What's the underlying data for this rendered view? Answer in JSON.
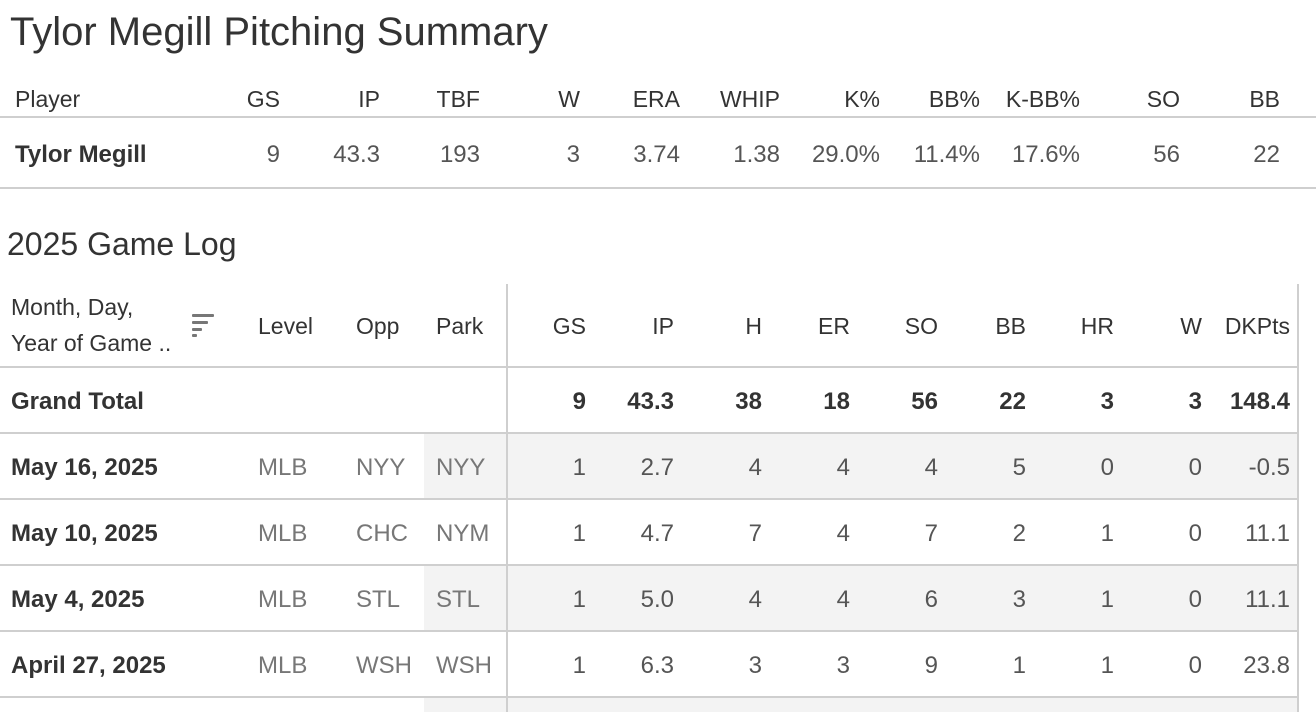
{
  "title": "Tylor Megill Pitching Summary",
  "summary": {
    "headers": [
      "Player",
      "GS",
      "IP",
      "TBF",
      "W",
      "ERA",
      "WHIP",
      "K%",
      "BB%",
      "K-BB%",
      "SO",
      "BB"
    ],
    "row": [
      "Tylor Megill",
      "9",
      "43.3",
      "193",
      "3",
      "3.74",
      "1.38",
      "29.0%",
      "11.4%",
      "17.6%",
      "56",
      "22"
    ]
  },
  "gamelog": {
    "title": "2025 Game Log",
    "header_date_line1": "Month, Day,",
    "header_date_line2": "Year of Game ..",
    "headers": [
      "Level",
      "Opp",
      "Park",
      "GS",
      "IP",
      "H",
      "ER",
      "SO",
      "BB",
      "HR",
      "W",
      "DKPts"
    ],
    "total": {
      "label": "Grand Total",
      "values": [
        "9",
        "43.3",
        "38",
        "18",
        "56",
        "22",
        "3",
        "3",
        "148.4"
      ]
    },
    "rows": [
      {
        "date": "May 16, 2025",
        "level": "MLB",
        "opp": "NYY",
        "park": "NYY",
        "values": [
          "1",
          "2.7",
          "4",
          "4",
          "4",
          "5",
          "0",
          "0",
          "-0.5"
        ]
      },
      {
        "date": "May 10, 2025",
        "level": "MLB",
        "opp": "CHC",
        "park": "NYM",
        "values": [
          "1",
          "4.7",
          "7",
          "4",
          "7",
          "2",
          "1",
          "0",
          "11.1"
        ]
      },
      {
        "date": "May 4, 2025",
        "level": "MLB",
        "opp": "STL",
        "park": "STL",
        "values": [
          "1",
          "5.0",
          "4",
          "4",
          "6",
          "3",
          "1",
          "0",
          "11.1"
        ]
      },
      {
        "date": "April 27, 2025",
        "level": "MLB",
        "opp": "WSH",
        "park": "WSH",
        "values": [
          "1",
          "6.3",
          "3",
          "3",
          "9",
          "1",
          "1",
          "0",
          "23.8"
        ]
      }
    ]
  }
}
